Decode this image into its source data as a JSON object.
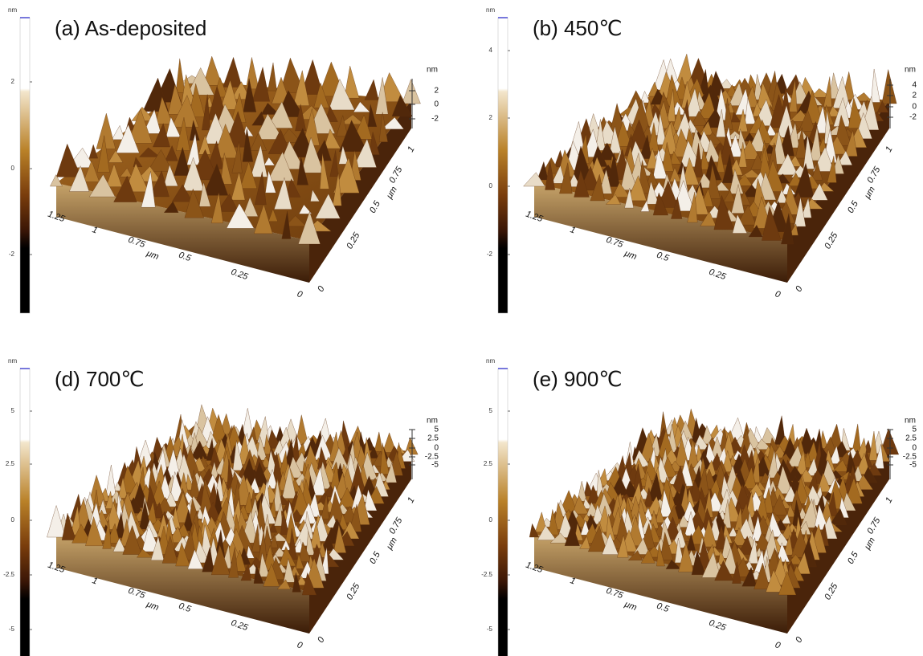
{
  "panels": [
    {
      "title": "(a) As-deposited",
      "colorbar_unit": "nm",
      "colorbar_ticks": [
        "2",
        "0",
        "-2"
      ],
      "z_unit": "nm",
      "z_ticks": [
        "2",
        "0",
        "-2"
      ],
      "x_ticks": [
        "1.25",
        "1",
        "0.75",
        "0.5",
        "0.25",
        "0"
      ],
      "x_axis_label": "μm",
      "y_ticks": [
        "0",
        "0.25",
        "0.5",
        "0.75",
        "1"
      ],
      "y_axis_label": "μm"
    },
    {
      "title": "(b) 450℃",
      "colorbar_unit": "nm",
      "colorbar_ticks": [
        "4",
        "2",
        "0",
        "-2"
      ],
      "z_unit": "nm",
      "z_ticks": [
        "4",
        "2",
        "0",
        "-2"
      ],
      "x_ticks": [
        "1.25",
        "1",
        "0.75",
        "0.5",
        "0.25",
        "0"
      ],
      "x_axis_label": "μm",
      "y_ticks": [
        "0",
        "0.25",
        "0.5",
        "0.75",
        "1"
      ],
      "y_axis_label": "μm"
    },
    {
      "title": "(d) 700℃",
      "colorbar_unit": "nm",
      "colorbar_ticks": [
        "5",
        "2.5",
        "0",
        "-2.5",
        "-5"
      ],
      "z_unit": "nm",
      "z_ticks": [
        "5",
        "2.5",
        "0",
        "-2.5",
        "-5"
      ],
      "x_ticks": [
        "1.25",
        "1",
        "0.75",
        "0.5",
        "0.25",
        "0"
      ],
      "x_axis_label": "μm",
      "y_ticks": [
        "0",
        "0.25",
        "0.5",
        "0.75",
        "1"
      ],
      "y_axis_label": "μm"
    },
    {
      "title": "(e) 900℃",
      "colorbar_unit": "nm",
      "colorbar_ticks": [
        "5",
        "2.5",
        "0",
        "-2.5",
        "-5"
      ],
      "z_unit": "nm",
      "z_ticks": [
        "5",
        "2.5",
        "0",
        "-2.5",
        "-5"
      ],
      "x_ticks": [
        "1.25",
        "1",
        "0.75",
        "0.5",
        "0.25",
        "0"
      ],
      "x_axis_label": "μm",
      "y_ticks": [
        "0",
        "0.25",
        "0.5",
        "0.75",
        "1"
      ],
      "y_axis_label": "μm"
    }
  ]
}
